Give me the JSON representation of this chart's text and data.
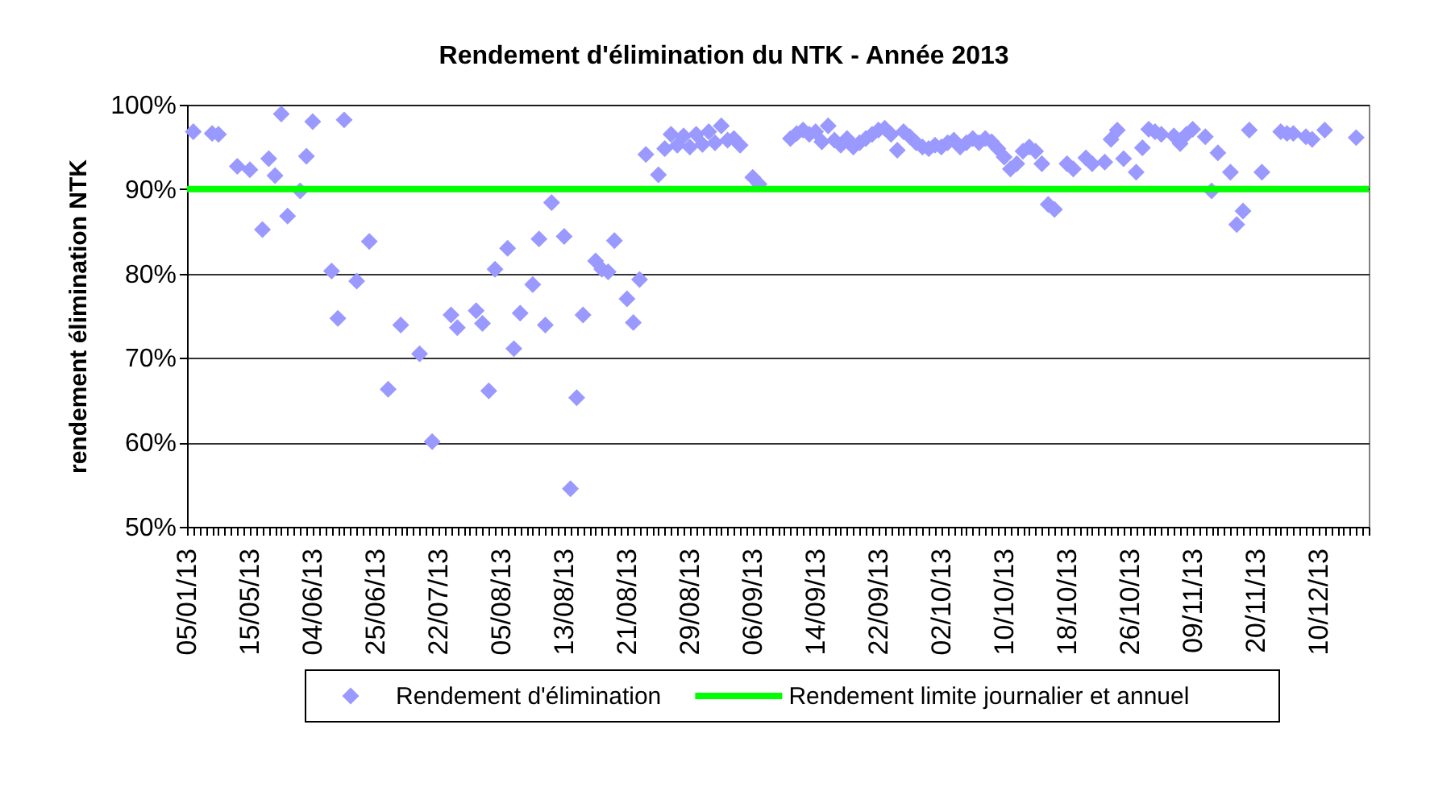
{
  "chart_data": {
    "type": "scatter",
    "title": "Rendement d'élimination du NTK - Année 2013",
    "ylabel": "rendement élimination NTK",
    "categories": [
      "05/01/13",
      null,
      null,
      null,
      null,
      null,
      null,
      null,
      null,
      null,
      "15/05/13",
      null,
      null,
      null,
      null,
      null,
      null,
      null,
      null,
      null,
      "04/06/13",
      null,
      null,
      null,
      null,
      null,
      null,
      null,
      null,
      null,
      "25/06/13",
      null,
      null,
      null,
      null,
      null,
      null,
      null,
      null,
      null,
      "22/07/13",
      null,
      null,
      null,
      null,
      null,
      null,
      null,
      null,
      null,
      "05/08/13",
      null,
      null,
      null,
      null,
      null,
      null,
      null,
      null,
      null,
      "13/08/13",
      null,
      null,
      null,
      null,
      null,
      null,
      null,
      null,
      null,
      "21/08/13",
      null,
      null,
      null,
      null,
      null,
      null,
      null,
      null,
      null,
      "29/08/13",
      null,
      null,
      null,
      null,
      null,
      null,
      null,
      null,
      null,
      "06/09/13",
      null,
      null,
      null,
      null,
      null,
      null,
      null,
      null,
      null,
      "14/09/13",
      null,
      null,
      null,
      null,
      null,
      null,
      null,
      null,
      null,
      "22/09/13",
      null,
      null,
      null,
      null,
      null,
      null,
      null,
      null,
      null,
      "02/10/13",
      null,
      null,
      null,
      null,
      null,
      null,
      null,
      null,
      null,
      "10/10/13",
      null,
      null,
      null,
      null,
      null,
      null,
      null,
      null,
      null,
      "18/10/13",
      null,
      null,
      null,
      null,
      null,
      null,
      null,
      null,
      null,
      "26/10/13",
      null,
      null,
      null,
      null,
      null,
      null,
      null,
      null,
      null,
      "09/11/13",
      null,
      null,
      null,
      null,
      null,
      null,
      null,
      null,
      null,
      "20/11/13",
      null,
      null,
      null,
      null,
      null,
      null,
      null,
      null,
      null,
      "10/12/13",
      null,
      null,
      null,
      null,
      null,
      null,
      null,
      null
    ],
    "series": [
      {
        "name": "Rendement d'élimination",
        "color": "#9999ff",
        "marker": "diamond",
        "values": [
          null,
          96.8,
          null,
          null,
          96.6,
          96.5,
          null,
          null,
          92.7,
          null,
          92.3,
          null,
          85.2,
          93.6,
          91.6,
          98.9,
          86.8,
          null,
          89.8,
          93.9,
          98.0,
          null,
          null,
          80.3,
          74.7,
          98.2,
          null,
          79.1,
          null,
          83.8,
          null,
          null,
          66.3,
          null,
          73.9,
          null,
          null,
          70.5,
          null,
          60.1,
          null,
          null,
          75.1,
          73.6,
          null,
          null,
          75.6,
          74.1,
          66.1,
          80.5,
          null,
          83.0,
          71.1,
          75.3,
          null,
          78.7,
          84.1,
          73.9,
          88.4,
          null,
          84.4,
          54.5,
          65.3,
          75.1,
          null,
          81.5,
          80.5,
          80.2,
          83.9,
          null,
          77.0,
          74.2,
          79.3,
          94.1,
          null,
          91.7,
          94.8,
          96.5,
          95.2,
          96.3,
          95.0,
          96.5,
          95.3,
          96.8,
          95.5,
          97.5,
          95.8,
          96.0,
          95.2,
          null,
          91.4,
          90.6,
          null,
          null,
          null,
          null,
          96.0,
          96.6,
          97.0,
          96.5,
          96.8,
          95.6,
          97.5,
          95.8,
          95.2,
          96.0,
          95.0,
          95.5,
          96.0,
          96.5,
          97.0,
          97.2,
          96.5,
          94.6,
          96.8,
          96.2,
          95.5,
          95.0,
          94.8,
          95.2,
          95.0,
          95.5,
          95.8,
          95.0,
          95.5,
          96.0,
          95.5,
          96.0,
          95.6,
          94.8,
          93.8,
          92.4,
          93.0,
          94.5,
          95.0,
          94.5,
          93.0,
          88.2,
          87.6,
          null,
          93.0,
          92.4,
          null,
          93.7,
          93.0,
          null,
          93.2,
          95.9,
          97.0,
          93.6,
          null,
          92.0,
          94.9,
          97.1,
          96.8,
          96.5,
          null,
          96.3,
          95.4,
          96.5,
          97.1,
          null,
          96.2,
          89.8,
          94.3,
          null,
          92.0,
          85.8,
          87.4,
          97.0,
          null,
          92.0,
          null,
          null,
          96.8,
          96.6,
          96.6,
          null,
          96.2,
          95.9,
          null,
          97.0,
          null,
          null,
          null,
          null,
          96.1,
          null,
          null
        ]
      },
      {
        "name": "Rendement limite journalier et annuel",
        "type": "line",
        "line_style": "solid",
        "color": "#00ff00",
        "values": [
          90,
          90,
          90,
          90,
          90,
          90,
          90,
          90,
          90,
          90,
          90,
          90,
          90,
          90,
          90,
          90,
          90,
          90,
          90,
          90,
          90,
          90,
          90,
          90,
          90,
          90,
          90,
          90,
          90,
          90,
          90,
          90,
          90,
          90,
          90,
          90,
          90,
          90,
          90,
          90,
          90,
          90,
          90,
          90,
          90,
          90,
          90,
          90,
          90,
          90,
          90,
          90,
          90,
          90,
          90,
          90,
          90,
          90,
          90,
          90,
          90,
          90,
          90,
          90,
          90,
          90,
          90,
          90,
          90,
          90,
          90,
          90,
          90,
          90,
          90,
          90,
          90,
          90,
          90,
          90,
          90,
          90,
          90,
          90,
          90,
          90,
          90,
          90,
          90,
          90,
          90,
          90,
          90,
          90,
          90,
          90,
          90,
          90,
          90,
          90,
          90,
          90,
          90,
          90,
          90,
          90,
          90,
          90,
          90,
          90,
          90,
          90,
          90,
          90,
          90,
          90,
          90,
          90,
          90,
          90,
          90,
          90,
          90,
          90,
          90,
          90,
          90,
          90,
          90,
          90,
          90,
          90,
          90,
          90,
          90,
          90,
          90,
          90,
          90,
          90,
          90,
          90,
          90,
          90,
          90,
          90,
          90,
          90,
          90,
          90,
          90,
          90,
          90,
          90,
          90,
          90,
          90,
          90,
          90,
          90,
          90,
          90,
          90,
          90,
          90,
          90,
          90,
          90,
          90,
          90,
          90,
          90,
          90,
          90,
          90,
          90,
          90,
          90,
          90,
          90,
          90,
          90,
          90,
          90,
          90,
          90,
          90,
          90,
          90
        ]
      }
    ],
    "ylim": [
      50,
      100
    ],
    "yticks": [
      {
        "value": 50,
        "label": "50%"
      },
      {
        "value": 60,
        "label": "60%"
      },
      {
        "value": 70,
        "label": "70%"
      },
      {
        "value": 80,
        "label": "80%"
      },
      {
        "value": 90,
        "label": "90%"
      },
      {
        "value": 100,
        "label": "100%"
      }
    ],
    "grid": "y",
    "legend": "bottom"
  }
}
